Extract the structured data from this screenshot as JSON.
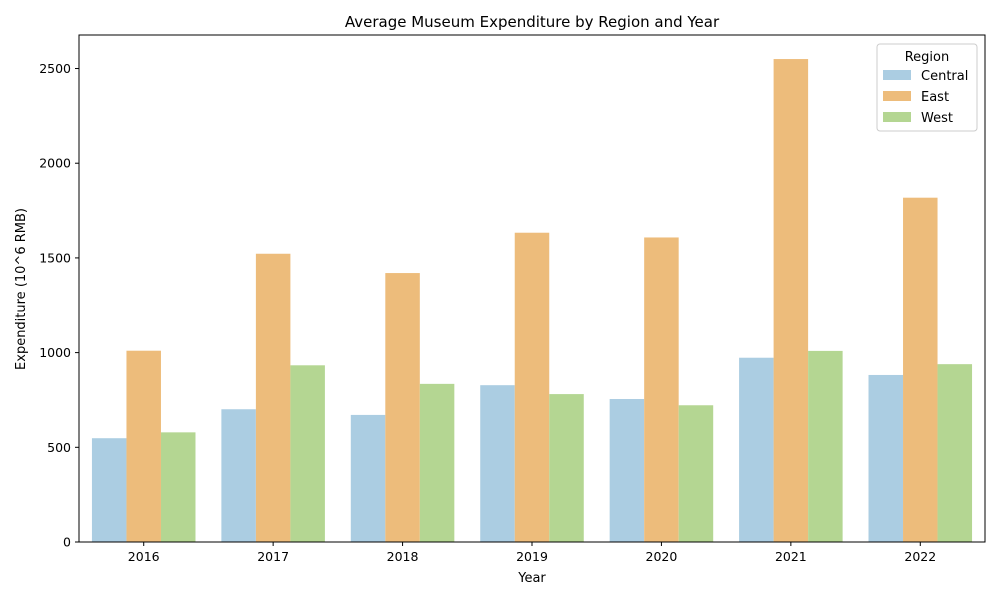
{
  "chart_data": {
    "type": "bar",
    "title": "Average Museum Expenditure by Region and Year",
    "xlabel": "Year",
    "ylabel": "Expenditure (10^6 RMB)",
    "categories": [
      "2016",
      "2017",
      "2018",
      "2019",
      "2020",
      "2021",
      "2022"
    ],
    "series": [
      {
        "name": "Central",
        "color": "#abcde2",
        "values": [
          548,
          701,
          671,
          828,
          755,
          973,
          882
        ]
      },
      {
        "name": "East",
        "color": "#edbc7b",
        "values": [
          1010,
          1522,
          1420,
          1633,
          1608,
          2550,
          1818
        ]
      },
      {
        "name": "West",
        "color": "#b4d692",
        "values": [
          579,
          933,
          835,
          781,
          722,
          1009,
          939
        ]
      }
    ],
    "ylim": [
      0,
      2677
    ],
    "yticks": [
      0,
      500,
      1000,
      1500,
      2000,
      2500
    ],
    "legend": {
      "title": "Region",
      "placement": "top-right"
    },
    "grid": false
  }
}
